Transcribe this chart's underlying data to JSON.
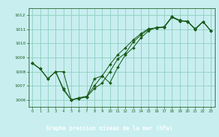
{
  "title": "Graphe pression niveau de la mer (hPa)",
  "background_color": "#c8eef0",
  "plot_bg": "#c8eef0",
  "line_color": "#1a5c1a",
  "grid_color": "#88ccbb",
  "footer_bg": "#2a6e2a",
  "footer_text": "#ffffff",
  "xlim": [
    -0.5,
    23.5
  ],
  "ylim": [
    1005.5,
    1012.5
  ],
  "yticks": [
    1006,
    1007,
    1008,
    1009,
    1010,
    1011,
    1012
  ],
  "xticks": [
    0,
    1,
    2,
    3,
    4,
    5,
    6,
    7,
    8,
    9,
    10,
    11,
    12,
    13,
    14,
    15,
    16,
    17,
    18,
    19,
    20,
    21,
    22,
    23
  ],
  "s1_x": [
    0,
    1,
    2,
    3,
    4,
    5,
    6,
    7,
    8,
    9,
    10,
    11,
    12,
    13,
    14,
    15,
    16,
    17,
    18,
    19,
    20,
    21,
    22,
    23
  ],
  "s1_y": [
    1008.6,
    1008.2,
    1007.5,
    1008.0,
    1006.7,
    1006.0,
    1006.1,
    1006.2,
    1006.8,
    1007.2,
    1008.0,
    1008.9,
    1009.3,
    1010.1,
    1010.6,
    1011.0,
    1011.1,
    1011.15,
    1011.9,
    1011.6,
    1011.55,
    1011.0,
    1011.55,
    1010.9
  ],
  "s2_x": [
    0,
    1,
    2,
    3,
    4,
    5,
    6,
    7,
    8,
    9,
    10,
    11,
    12,
    13,
    14,
    15,
    16,
    17,
    18,
    19,
    20,
    21,
    22,
    23
  ],
  "s2_y": [
    1008.6,
    1008.2,
    1007.5,
    1008.0,
    1008.0,
    1006.0,
    1006.1,
    1006.2,
    1007.5,
    1007.7,
    1007.2,
    1008.3,
    1009.2,
    1009.7,
    1010.4,
    1010.9,
    1011.15,
    1011.15,
    1011.85,
    1011.6,
    1011.6,
    1011.0,
    1011.55,
    1010.9
  ],
  "s3_x": [
    0,
    1,
    2,
    3,
    4,
    5,
    6,
    7,
    8,
    9,
    10,
    11,
    12,
    13,
    14,
    15,
    16,
    17,
    18,
    19,
    20,
    21,
    22,
    23
  ],
  "s3_y": [
    1008.6,
    1008.2,
    1007.5,
    1008.0,
    1006.8,
    1006.0,
    1006.15,
    1006.25,
    1007.0,
    1007.7,
    1008.5,
    1009.2,
    1009.7,
    1010.25,
    1010.7,
    1011.05,
    1011.1,
    1011.2,
    1011.9,
    1011.65,
    1011.55,
    1011.05,
    1011.55,
    1010.9
  ]
}
